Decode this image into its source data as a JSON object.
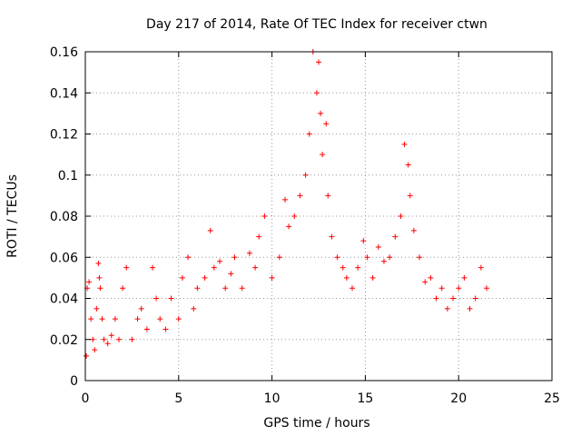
{
  "chart_data": {
    "type": "scatter",
    "title": "Day 217 of 2014, Rate Of TEC Index for receiver ctwn",
    "xlabel": "GPS time / hours",
    "ylabel": "ROTI / TECUs",
    "xlim": [
      0,
      25
    ],
    "ylim": [
      0,
      0.16
    ],
    "x_ticks": [
      "0",
      "5",
      "10",
      "15",
      "20",
      "25"
    ],
    "y_ticks": [
      "0",
      "0.02",
      "0.04",
      "0.06",
      "0.08",
      "0.1",
      "0.12",
      "0.14",
      "0.16"
    ],
    "grid": true,
    "marker": "plus",
    "color": "#ff0000",
    "series": [
      {
        "x": [
          0.05,
          0.1,
          0.2,
          0.3,
          0.4,
          0.5,
          0.6,
          0.7,
          0.75,
          0.8,
          0.9,
          1.0,
          1.2,
          1.4,
          1.6,
          1.8,
          2.0,
          2.2,
          2.5,
          2.8,
          3.0,
          3.3,
          3.6,
          3.8,
          4.0,
          4.3,
          4.6,
          5.0,
          5.2,
          5.5,
          5.8,
          6.0,
          6.4,
          6.7,
          6.9,
          7.2,
          7.5,
          7.8,
          8.0,
          8.4,
          8.8,
          9.1,
          9.3,
          9.6,
          10.0,
          10.4,
          10.7,
          10.9,
          11.2,
          11.5,
          11.8,
          12.0,
          12.2,
          12.4,
          12.5,
          12.6,
          12.7,
          12.9,
          13.0,
          13.2,
          13.5,
          13.8,
          14.0,
          14.3,
          14.6,
          14.9,
          15.1,
          15.4,
          15.7,
          16.0,
          16.3,
          16.6,
          16.9,
          17.1,
          17.3,
          17.4,
          17.6,
          17.9,
          18.2,
          18.5,
          18.8,
          19.1,
          19.4,
          19.7,
          20.0,
          20.3,
          20.6,
          20.9,
          21.2,
          21.5
        ],
        "y": [
          0.012,
          0.045,
          0.048,
          0.03,
          0.02,
          0.015,
          0.035,
          0.057,
          0.05,
          0.045,
          0.03,
          0.02,
          0.018,
          0.022,
          0.03,
          0.02,
          0.045,
          0.055,
          0.02,
          0.03,
          0.035,
          0.025,
          0.055,
          0.04,
          0.03,
          0.025,
          0.04,
          0.03,
          0.05,
          0.06,
          0.035,
          0.045,
          0.05,
          0.073,
          0.055,
          0.058,
          0.045,
          0.052,
          0.06,
          0.045,
          0.062,
          0.055,
          0.07,
          0.08,
          0.05,
          0.06,
          0.088,
          0.075,
          0.08,
          0.09,
          0.1,
          0.12,
          0.16,
          0.14,
          0.155,
          0.13,
          0.11,
          0.125,
          0.09,
          0.07,
          0.06,
          0.055,
          0.05,
          0.045,
          0.055,
          0.068,
          0.06,
          0.05,
          0.065,
          0.058,
          0.06,
          0.07,
          0.08,
          0.115,
          0.105,
          0.09,
          0.073,
          0.06,
          0.048,
          0.05,
          0.04,
          0.045,
          0.035,
          0.04,
          0.045,
          0.05,
          0.035,
          0.04,
          0.055,
          0.045
        ]
      }
    ]
  }
}
